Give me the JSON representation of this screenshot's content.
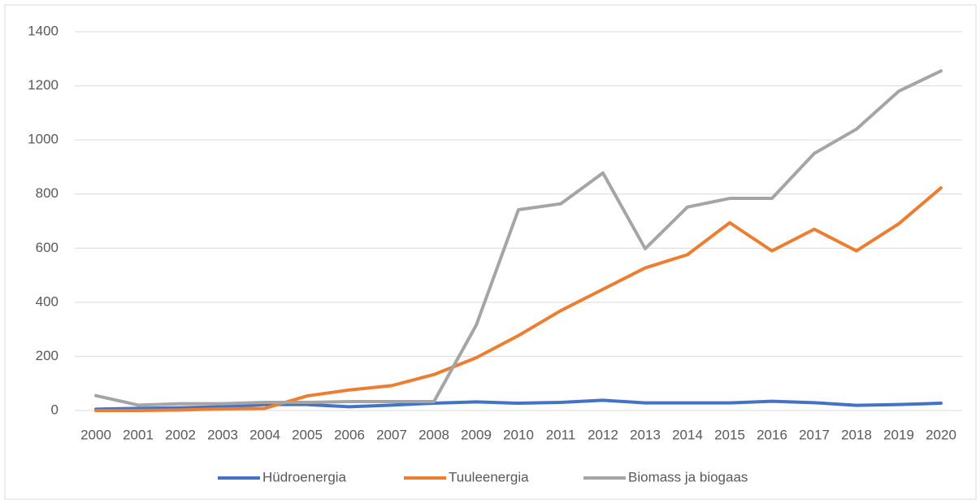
{
  "chart_data": {
    "type": "line",
    "categories": [
      "2000",
      "2001",
      "2002",
      "2003",
      "2004",
      "2005",
      "2006",
      "2007",
      "2008",
      "2009",
      "2010",
      "2011",
      "2012",
      "2013",
      "2014",
      "2015",
      "2016",
      "2017",
      "2018",
      "2019",
      "2020"
    ],
    "series": [
      {
        "name": "Hüdroenergia",
        "color": "#4472c4",
        "values": [
          5,
          8,
          10,
          14,
          22,
          22,
          14,
          20,
          27,
          32,
          27,
          30,
          38,
          28,
          28,
          28,
          34,
          29,
          19,
          22,
          27
        ]
      },
      {
        "name": "Tuuleenergia",
        "color": "#ed7d31",
        "values": [
          0,
          0,
          2,
          6,
          8,
          54,
          76,
          92,
          133,
          195,
          277,
          369,
          448,
          527,
          576,
          694,
          590,
          670,
          590,
          690,
          823
        ]
      },
      {
        "name": "Biomass ja biogaas",
        "color": "#a5a5a5",
        "values": [
          55,
          20,
          25,
          25,
          30,
          30,
          33,
          33,
          33,
          315,
          742,
          764,
          878,
          598,
          752,
          784,
          784,
          950,
          1040,
          1180,
          1255
        ]
      }
    ],
    "ylim": [
      0,
      1400
    ],
    "yticks": [
      0,
      200,
      400,
      600,
      800,
      1000,
      1200,
      1400
    ],
    "grid": true,
    "legend": "bottom"
  }
}
